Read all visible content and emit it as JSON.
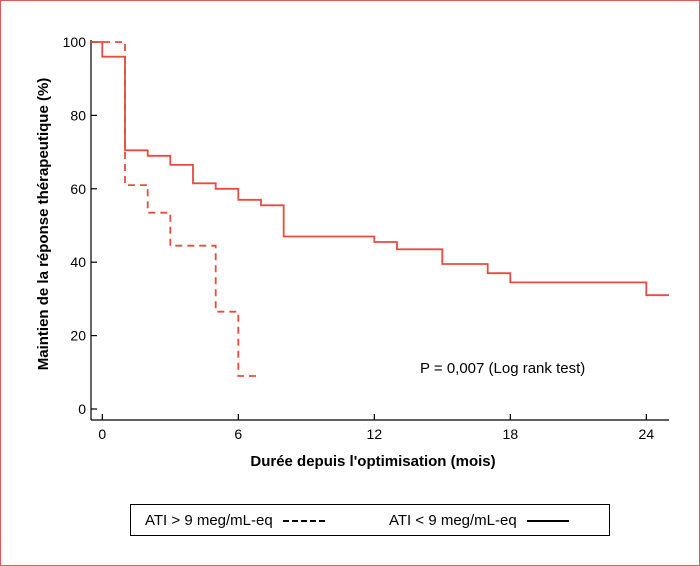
{
  "chart_data": {
    "type": "line",
    "subtype": "kaplan-meier-step",
    "xlabel": "Durée depuis l'optimisation (mois)",
    "ylabel": "Maintien de la réponse thérapeutique (%)",
    "x_ticks": [
      0,
      6,
      12,
      18,
      24
    ],
    "y_ticks": [
      0,
      20,
      40,
      60,
      80,
      100
    ],
    "xlim": [
      -0.5,
      25
    ],
    "ylim": [
      -3,
      100
    ],
    "grid": false,
    "legend_placement": "bottom",
    "annotation": "P = 0,007 (Log rank test)",
    "series": [
      {
        "name": "ATI > 9 meg/mL-eq",
        "style": "dashed",
        "color": "#e84c3d",
        "points": [
          [
            -0.5,
            100
          ],
          [
            1,
            100
          ],
          [
            1,
            61
          ],
          [
            2,
            61
          ],
          [
            2,
            53.5
          ],
          [
            3,
            53.5
          ],
          [
            3,
            44.5
          ],
          [
            5,
            44.5
          ],
          [
            5,
            26.5
          ],
          [
            6,
            26.5
          ],
          [
            6,
            9
          ],
          [
            7,
            9
          ]
        ]
      },
      {
        "name": "ATI < 9 meg/mL-eq",
        "style": "solid",
        "color": "#e84c3d",
        "points": [
          [
            -0.5,
            100
          ],
          [
            0,
            100
          ],
          [
            0,
            96
          ],
          [
            1,
            96
          ],
          [
            1,
            70.5
          ],
          [
            2,
            70.5
          ],
          [
            2,
            69
          ],
          [
            3,
            69
          ],
          [
            3,
            66.5
          ],
          [
            4,
            66.5
          ],
          [
            4,
            61.5
          ],
          [
            5,
            61.5
          ],
          [
            5,
            60
          ],
          [
            6,
            60
          ],
          [
            6,
            57
          ],
          [
            7,
            57
          ],
          [
            7,
            55.5
          ],
          [
            8,
            55.5
          ],
          [
            8,
            47
          ],
          [
            12,
            47
          ],
          [
            12,
            45.5
          ],
          [
            13,
            45.5
          ],
          [
            13,
            43.5
          ],
          [
            15,
            43.5
          ],
          [
            15,
            39.5
          ],
          [
            17,
            39.5
          ],
          [
            17,
            37
          ],
          [
            18,
            37
          ],
          [
            18,
            34.5
          ],
          [
            24,
            34.5
          ],
          [
            24,
            31
          ],
          [
            25,
            31
          ]
        ]
      }
    ]
  },
  "legend": {
    "dashed_label": "ATI > 9 meg/mL-eq",
    "solid_label": "ATI < 9 meg/mL-eq"
  }
}
